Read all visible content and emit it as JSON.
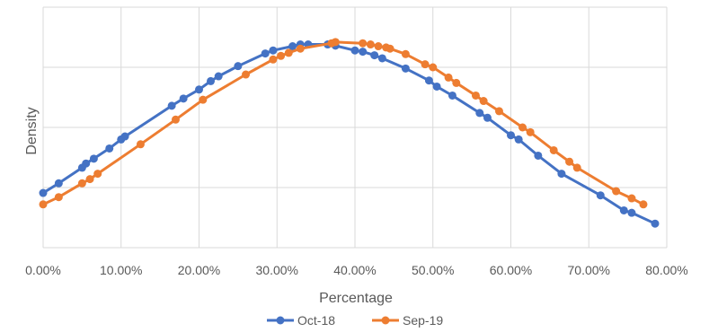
{
  "chart_data": {
    "type": "line",
    "title": "",
    "xlabel": "Percentage",
    "ylabel": "Density",
    "xlim": [
      0,
      0.8
    ],
    "ylim": [
      0,
      4
    ],
    "grid": {
      "horizontal": true,
      "vertical": true
    },
    "legend_position": "bottom",
    "x_tick_labels": [
      "0.00%",
      "10.00%",
      "20.00%",
      "30.00%",
      "40.00%",
      "50.00%",
      "60.00%",
      "70.00%",
      "80.00%"
    ],
    "series": [
      {
        "name": "Oct-18",
        "color": "#4472C4",
        "points": [
          [
            0.0,
            0.91
          ],
          [
            0.02,
            1.07
          ],
          [
            0.05,
            1.33
          ],
          [
            0.055,
            1.4
          ],
          [
            0.065,
            1.48
          ],
          [
            0.085,
            1.65
          ],
          [
            0.1,
            1.8
          ],
          [
            0.105,
            1.85
          ],
          [
            0.165,
            2.36
          ],
          [
            0.18,
            2.48
          ],
          [
            0.2,
            2.63
          ],
          [
            0.215,
            2.77
          ],
          [
            0.225,
            2.85
          ],
          [
            0.25,
            3.02
          ],
          [
            0.285,
            3.23
          ],
          [
            0.295,
            3.28
          ],
          [
            0.32,
            3.35
          ],
          [
            0.33,
            3.38
          ],
          [
            0.34,
            3.38
          ],
          [
            0.365,
            3.38
          ],
          [
            0.375,
            3.36
          ],
          [
            0.4,
            3.28
          ],
          [
            0.41,
            3.26
          ],
          [
            0.425,
            3.2
          ],
          [
            0.435,
            3.15
          ],
          [
            0.465,
            2.98
          ],
          [
            0.495,
            2.78
          ],
          [
            0.505,
            2.68
          ],
          [
            0.525,
            2.53
          ],
          [
            0.56,
            2.24
          ],
          [
            0.57,
            2.16
          ],
          [
            0.6,
            1.87
          ],
          [
            0.61,
            1.8
          ],
          [
            0.635,
            1.53
          ],
          [
            0.665,
            1.23
          ],
          [
            0.715,
            0.87
          ],
          [
            0.745,
            0.62
          ],
          [
            0.755,
            0.58
          ],
          [
            0.785,
            0.4
          ]
        ]
      },
      {
        "name": "Sep-19",
        "color": "#ED7D31",
        "points": [
          [
            0.0,
            0.72
          ],
          [
            0.02,
            0.84
          ],
          [
            0.05,
            1.07
          ],
          [
            0.06,
            1.14
          ],
          [
            0.07,
            1.23
          ],
          [
            0.125,
            1.72
          ],
          [
            0.17,
            2.13
          ],
          [
            0.205,
            2.46
          ],
          [
            0.26,
            2.88
          ],
          [
            0.295,
            3.13
          ],
          [
            0.305,
            3.19
          ],
          [
            0.315,
            3.24
          ],
          [
            0.33,
            3.31
          ],
          [
            0.37,
            3.4
          ],
          [
            0.375,
            3.42
          ],
          [
            0.41,
            3.4
          ],
          [
            0.42,
            3.38
          ],
          [
            0.43,
            3.35
          ],
          [
            0.44,
            3.33
          ],
          [
            0.445,
            3.31
          ],
          [
            0.465,
            3.22
          ],
          [
            0.49,
            3.05
          ],
          [
            0.5,
            3.0
          ],
          [
            0.52,
            2.83
          ],
          [
            0.53,
            2.74
          ],
          [
            0.555,
            2.53
          ],
          [
            0.565,
            2.44
          ],
          [
            0.585,
            2.27
          ],
          [
            0.615,
            2.0
          ],
          [
            0.625,
            1.92
          ],
          [
            0.655,
            1.62
          ],
          [
            0.675,
            1.43
          ],
          [
            0.685,
            1.33
          ],
          [
            0.735,
            0.94
          ],
          [
            0.755,
            0.82
          ],
          [
            0.77,
            0.72
          ]
        ]
      }
    ]
  }
}
